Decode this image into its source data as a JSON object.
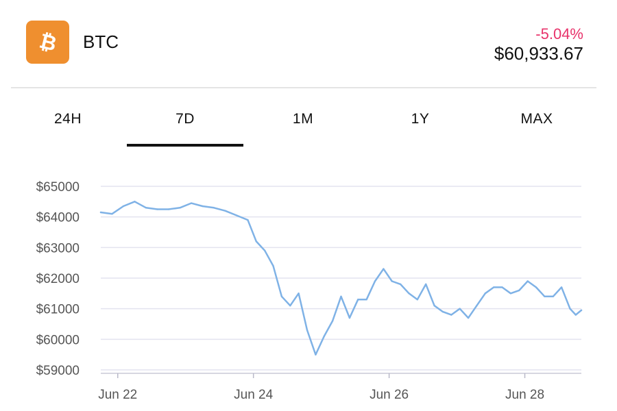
{
  "header": {
    "logo_icon": "bitcoin-icon",
    "logo_color": "#ef8f2f",
    "symbol": "BTC",
    "change": "-5.04%",
    "change_color": "#e8336b",
    "price": "$60,933.67"
  },
  "tabs": [
    {
      "label": "24H",
      "active": false
    },
    {
      "label": "7D",
      "active": true
    },
    {
      "label": "1M",
      "active": false
    },
    {
      "label": "1Y",
      "active": false
    },
    {
      "label": "MAX",
      "active": false
    }
  ],
  "chart_data": {
    "type": "line",
    "title": "",
    "xlabel": "",
    "ylabel": "",
    "ylim": [
      58800,
      65000
    ],
    "xlim": [
      "2024-06-21T18:00",
      "2024-06-28T20:00"
    ],
    "yticks": [
      "$65000",
      "$64000",
      "$63000",
      "$62000",
      "$61000",
      "$60000",
      "$59000"
    ],
    "ytick_values": [
      65000,
      64000,
      63000,
      62000,
      61000,
      60000,
      59000
    ],
    "xticks": [
      "Jun 22",
      "Jun 24",
      "Jun 26",
      "Jun 28"
    ],
    "xtick_values": [
      "2024-06-22T00:00",
      "2024-06-24T00:00",
      "2024-06-26T00:00",
      "2024-06-28T00:00"
    ],
    "grid": true,
    "line_color": "#7fb2e6",
    "series": [
      {
        "x": [
          "2024-06-21T18:00",
          "2024-06-21T22:00",
          "2024-06-22T02:00",
          "2024-06-22T06:00",
          "2024-06-22T10:00",
          "2024-06-22T14:00",
          "2024-06-22T18:00",
          "2024-06-22T22:00",
          "2024-06-23T02:00",
          "2024-06-23T06:00",
          "2024-06-23T10:00",
          "2024-06-23T14:00",
          "2024-06-23T18:00",
          "2024-06-23T22:00",
          "2024-06-24T01:00",
          "2024-06-24T04:00",
          "2024-06-24T07:00",
          "2024-06-24T10:00",
          "2024-06-24T13:00",
          "2024-06-24T16:00",
          "2024-06-24T19:00",
          "2024-06-24T22:00",
          "2024-06-25T01:00",
          "2024-06-25T04:00",
          "2024-06-25T07:00",
          "2024-06-25T10:00",
          "2024-06-25T13:00",
          "2024-06-25T16:00",
          "2024-06-25T19:00",
          "2024-06-25T22:00",
          "2024-06-26T01:00",
          "2024-06-26T04:00",
          "2024-06-26T07:00",
          "2024-06-26T10:00",
          "2024-06-26T13:00",
          "2024-06-26T16:00",
          "2024-06-26T19:00",
          "2024-06-26T22:00",
          "2024-06-27T01:00",
          "2024-06-27T04:00",
          "2024-06-27T07:00",
          "2024-06-27T10:00",
          "2024-06-27T13:00",
          "2024-06-27T16:00",
          "2024-06-27T19:00",
          "2024-06-27T22:00",
          "2024-06-28T01:00",
          "2024-06-28T04:00",
          "2024-06-28T07:00",
          "2024-06-28T10:00",
          "2024-06-28T13:00",
          "2024-06-28T16:00",
          "2024-06-28T18:00",
          "2024-06-28T20:00"
        ],
        "y": [
          64150,
          64100,
          64350,
          64500,
          64300,
          64250,
          64250,
          64300,
          64450,
          64350,
          64300,
          64200,
          64050,
          63900,
          63200,
          62900,
          62400,
          61400,
          61100,
          61500,
          60300,
          59500,
          60100,
          60600,
          61400,
          60700,
          61300,
          61300,
          61900,
          62300,
          61900,
          61800,
          61500,
          61300,
          61800,
          61100,
          60900,
          60800,
          61000,
          60700,
          61100,
          61500,
          61700,
          61700,
          61500,
          61600,
          61900,
          61700,
          61400,
          61400,
          61700,
          61000,
          60800,
          60950
        ]
      }
    ]
  }
}
